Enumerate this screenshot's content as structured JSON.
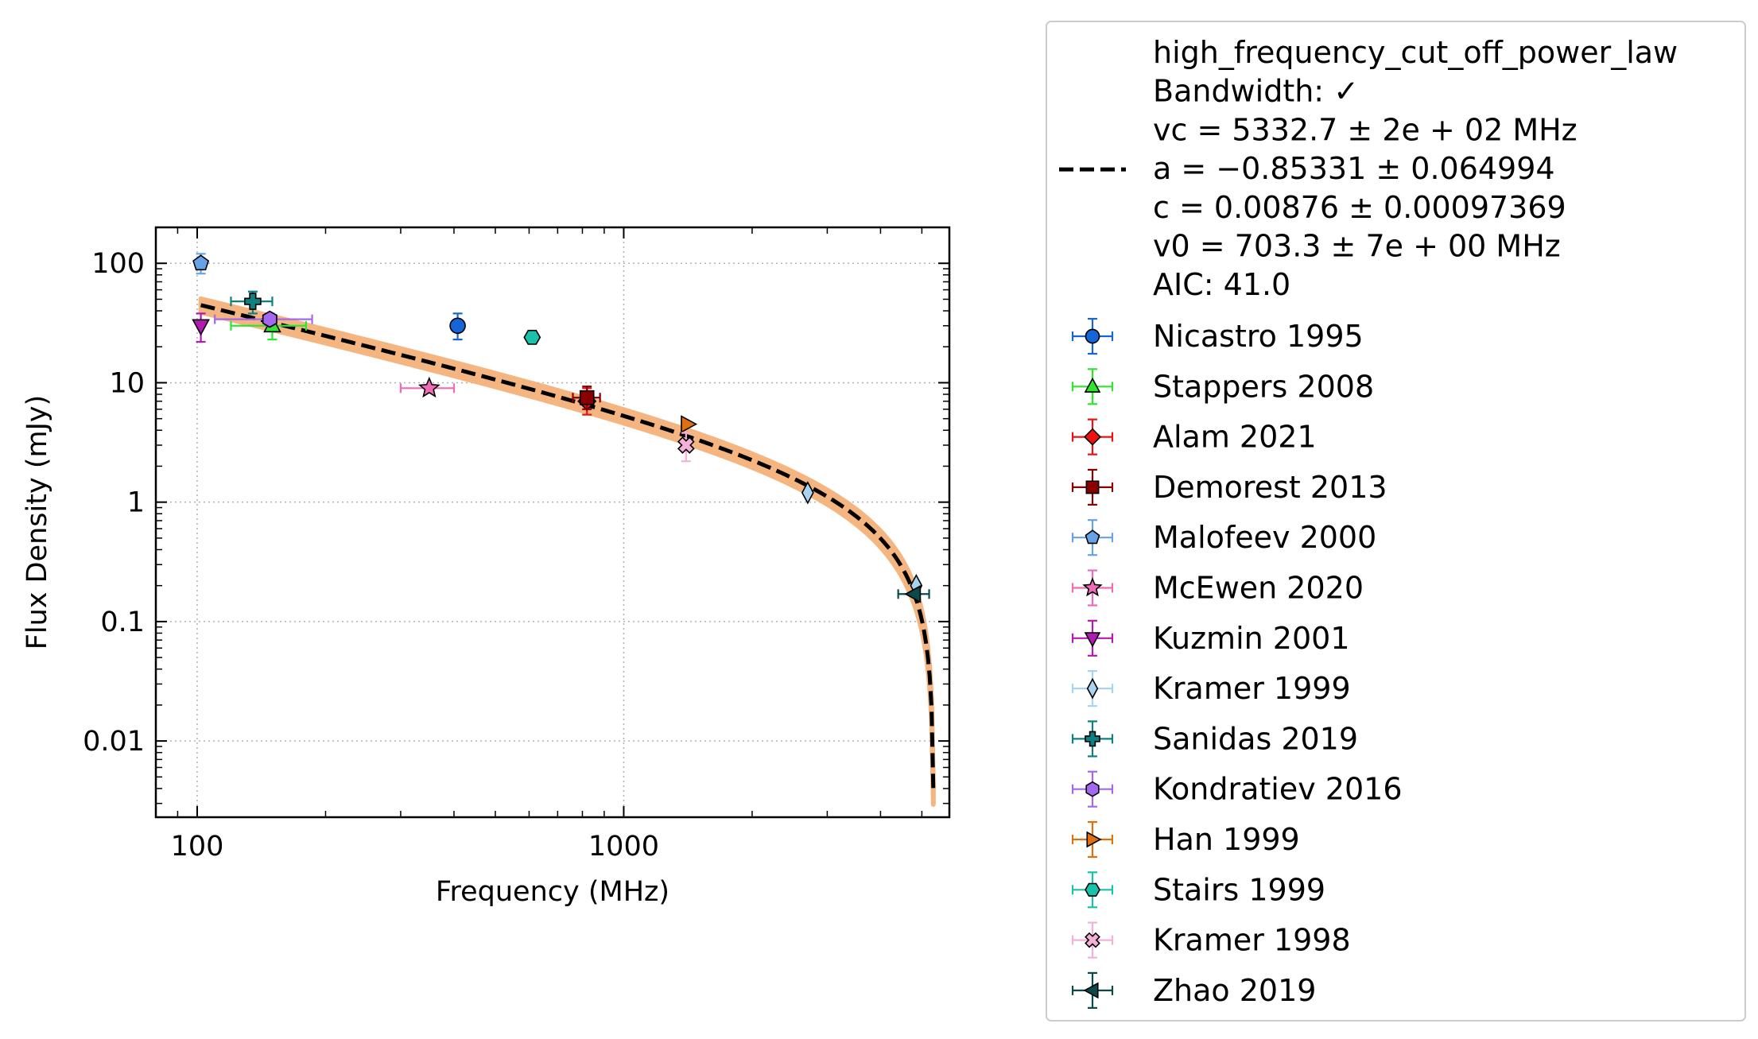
{
  "chart_data": {
    "type": "scatter",
    "xlabel": "Frequency (MHz)",
    "ylabel": "Flux Density (mJy)",
    "xscale": "log",
    "yscale": "log",
    "xlim": [
      80,
      5800
    ],
    "ylim": [
      0.0023,
      200
    ],
    "xticks": [
      {
        "value": 100,
        "label": "100"
      },
      {
        "value": 1000,
        "label": "1000"
      }
    ],
    "yticks": [
      {
        "value": 100,
        "label": "100"
      },
      {
        "value": 10,
        "label": "10"
      },
      {
        "value": 1,
        "label": "1"
      },
      {
        "value": 0.1,
        "label": "0.1"
      },
      {
        "value": 0.01,
        "label": "0.01"
      }
    ],
    "grid": true,
    "legend_position": "outside right",
    "fit": {
      "model": "high_frequency_cut_off_power_law",
      "legend_lines": [
        "high_frequency_cut_off_power_law",
        "Bandwidth: ✓",
        "vc = 5332.7 ± 2e + 02 MHz",
        "a = −0.85331 ± 0.064994",
        "c = 0.00876 ± 0.00097369",
        "v0 = 703.3 ± 7e + 00 MHz",
        "AIC: 41.0"
      ],
      "vc": 5332.7,
      "a": -0.85331,
      "c": 0.00876,
      "v0": 703.3,
      "x_range": [
        102,
        5320
      ],
      "line_color": "#000000",
      "band_color": "#f5b27a"
    },
    "series": [
      {
        "name": "Nicastro 1995",
        "marker": "circle",
        "color": "#1565d8",
        "edge": "#1565d8",
        "points": [
          {
            "x": 408,
            "y": 30,
            "xerr": [
              0,
              0
            ],
            "yerr": [
              7,
              8
            ]
          }
        ]
      },
      {
        "name": "Stappers 2008",
        "marker": "triangle-up",
        "color": "#2ee62e",
        "edge": "#2ee62e",
        "points": [
          {
            "x": 150,
            "y": 30,
            "xerr": [
              30,
              30
            ],
            "yerr": [
              7,
              7
            ]
          }
        ]
      },
      {
        "name": "Alam 2021",
        "marker": "diamond",
        "color": "#ee1111",
        "edge": "#ee1111",
        "points": [
          {
            "x": 820,
            "y": 7,
            "xerr": [
              0,
              0
            ],
            "yerr": [
              1.6,
              2
            ]
          }
        ]
      },
      {
        "name": "Demorest 2013",
        "marker": "square",
        "color": "#8b0000",
        "edge": "#8b0000",
        "points": [
          {
            "x": 820,
            "y": 7.5,
            "xerr": [
              60,
              60
            ],
            "yerr": [
              1.5,
              1.8
            ]
          }
        ]
      },
      {
        "name": "Malofeev 2000",
        "marker": "pentagon",
        "color": "#66a3e6",
        "edge": "#66a3e6",
        "points": [
          {
            "x": 102,
            "y": 100,
            "xerr": [
              0,
              0
            ],
            "yerr": [
              18,
              20
            ]
          }
        ]
      },
      {
        "name": "McEwen 2020",
        "marker": "star",
        "color": "#f06bb5",
        "edge": "#f06bb5",
        "points": [
          {
            "x": 350,
            "y": 9,
            "xerr": [
              50,
              50
            ],
            "yerr": [
              0,
              0
            ]
          }
        ]
      },
      {
        "name": "Kuzmin 2001",
        "marker": "triangle-down",
        "color": "#b319b3",
        "edge": "#b319b3",
        "points": [
          {
            "x": 102,
            "y": 30,
            "xerr": [
              0,
              0
            ],
            "yerr": [
              8,
              8
            ]
          }
        ]
      },
      {
        "name": "Kramer 1999",
        "marker": "thin-diamond",
        "color": "#a8d4f0",
        "edge": "#a8d4f0",
        "points": [
          {
            "x": 2700,
            "y": 1.2,
            "xerr": [
              0,
              0
            ],
            "yerr": [
              0,
              0
            ]
          },
          {
            "x": 4850,
            "y": 0.2,
            "xerr": [
              0,
              0
            ],
            "yerr": [
              0,
              0
            ]
          }
        ]
      },
      {
        "name": "Sanidas 2019",
        "marker": "plus",
        "color": "#0f7f7f",
        "edge": "#0f7f7f",
        "points": [
          {
            "x": 135,
            "y": 48,
            "xerr": [
              15,
              15
            ],
            "yerr": [
              10,
              10
            ]
          }
        ]
      },
      {
        "name": "Kondratiev 2016",
        "marker": "hexagon",
        "color": "#a467f0",
        "edge": "#a467f0",
        "points": [
          {
            "x": 148,
            "y": 34,
            "xerr": [
              38,
              38
            ],
            "yerr": [
              4,
              4
            ]
          }
        ]
      },
      {
        "name": "Han 1999",
        "marker": "triangle-right",
        "color": "#e0700f",
        "edge": "#e0700f",
        "points": [
          {
            "x": 1410,
            "y": 4.5,
            "xerr": [
              0,
              0
            ],
            "yerr": [
              0,
              0
            ]
          }
        ]
      },
      {
        "name": "Stairs 1999",
        "marker": "hexagon-flat",
        "color": "#19c2a8",
        "edge": "#19c2a8",
        "points": [
          {
            "x": 610,
            "y": 24,
            "xerr": [
              0,
              0
            ],
            "yerr": [
              0,
              0
            ]
          }
        ]
      },
      {
        "name": "Kramer 1998",
        "marker": "x-filled",
        "color": "#f5b0d8",
        "edge": "#f5b0d8",
        "points": [
          {
            "x": 1400,
            "y": 3,
            "xerr": [
              0,
              0
            ],
            "yerr": [
              0.8,
              0.8
            ]
          }
        ]
      },
      {
        "name": "Zhao 2019",
        "marker": "triangle-left",
        "color": "#0c4a4a",
        "edge": "#0c4a4a",
        "points": [
          {
            "x": 4800,
            "y": 0.17,
            "xerr": [
              400,
              400
            ],
            "yerr": [
              0,
              0
            ]
          }
        ]
      }
    ]
  }
}
